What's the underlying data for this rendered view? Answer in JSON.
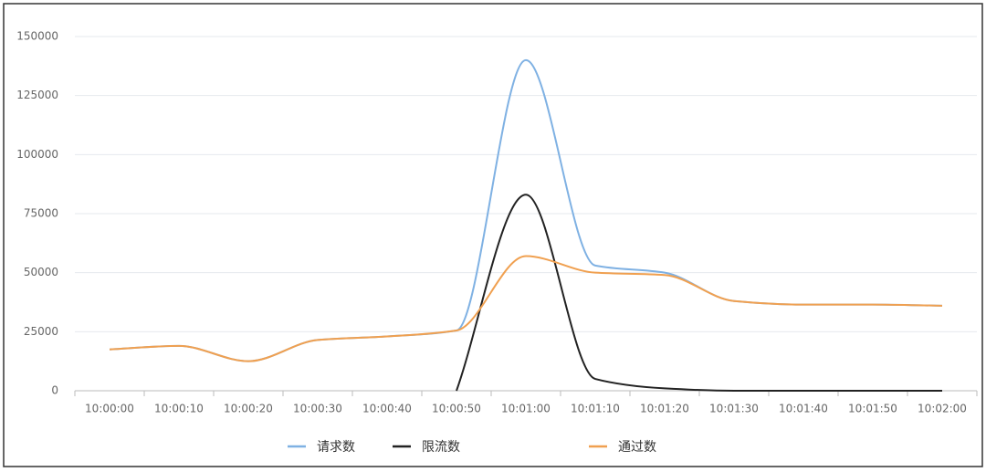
{
  "chart_data": {
    "type": "line",
    "categories": [
      "10:00:00",
      "10:00:10",
      "10:00:20",
      "10:00:30",
      "10:00:40",
      "10:00:50",
      "10:01:00",
      "10:01:10",
      "10:01:20",
      "10:01:30",
      "10:01:40",
      "10:01:50",
      "10:02:00"
    ],
    "series": [
      {
        "name": "请求数",
        "color": "#7fb1e3",
        "values": [
          17500,
          19000,
          12500,
          21500,
          23000,
          25500,
          140000,
          53000,
          50000,
          38000,
          36500,
          36500,
          36000
        ]
      },
      {
        "name": "限流数",
        "color": "#222222",
        "values": [
          null,
          null,
          null,
          null,
          null,
          0,
          83000,
          5000,
          1000,
          0,
          0,
          0,
          0
        ]
      },
      {
        "name": "通过数",
        "color": "#f0a050",
        "values": [
          17500,
          19000,
          12500,
          21500,
          23000,
          25500,
          57000,
          50000,
          49000,
          38000,
          36500,
          36500,
          36000
        ]
      }
    ],
    "ylim": [
      0,
      150000
    ],
    "yticks": [
      0,
      25000,
      50000,
      75000,
      100000,
      125000,
      150000
    ],
    "grid": true
  }
}
